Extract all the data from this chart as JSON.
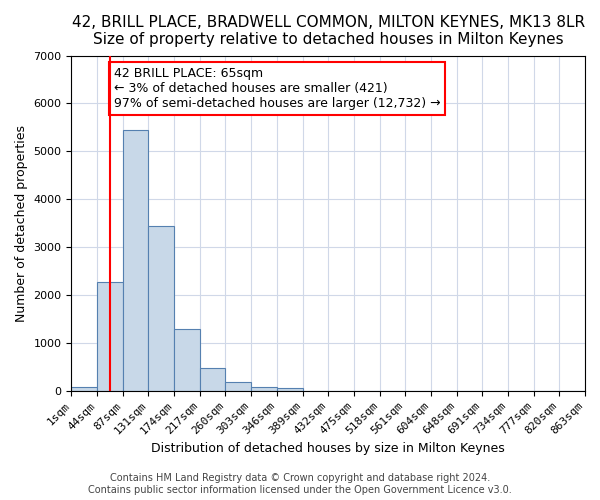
{
  "title": "42, BRILL PLACE, BRADWELL COMMON, MILTON KEYNES, MK13 8LR",
  "subtitle": "Size of property relative to detached houses in Milton Keynes",
  "xlabel": "Distribution of detached houses by size in Milton Keynes",
  "ylabel": "Number of detached properties",
  "bin_labels": [
    "1sqm",
    "44sqm",
    "87sqm",
    "131sqm",
    "174sqm",
    "217sqm",
    "260sqm",
    "303sqm",
    "346sqm",
    "389sqm",
    "432sqm",
    "475sqm",
    "518sqm",
    "561sqm",
    "604sqm",
    "648sqm",
    "691sqm",
    "734sqm",
    "777sqm",
    "820sqm",
    "863sqm"
  ],
  "bar_values": [
    75,
    2280,
    5450,
    3450,
    1300,
    480,
    190,
    90,
    55,
    0,
    0,
    0,
    0,
    0,
    0,
    0,
    0,
    0,
    0,
    0
  ],
  "bar_color": "#c8d8e8",
  "bar_edge_color": "#5580b0",
  "vline_x": 1.0,
  "vline_color": "red",
  "annotation_text": "42 BRILL PLACE: 65sqm\n← 3% of detached houses are smaller (421)\n97% of semi-detached houses are larger (12,732) →",
  "annotation_box_color": "white",
  "annotation_box_edge_color": "red",
  "ylim": [
    0,
    7000
  ],
  "yticks": [
    0,
    1000,
    2000,
    3000,
    4000,
    5000,
    6000,
    7000
  ],
  "footnote1": "Contains HM Land Registry data © Crown copyright and database right 2024.",
  "footnote2": "Contains public sector information licensed under the Open Government Licence v3.0.",
  "grid_color": "#d0d8e8",
  "title_fontsize": 11,
  "subtitle_fontsize": 10,
  "axis_label_fontsize": 9,
  "tick_fontsize": 8,
  "annotation_fontsize": 9,
  "footnote_fontsize": 7
}
